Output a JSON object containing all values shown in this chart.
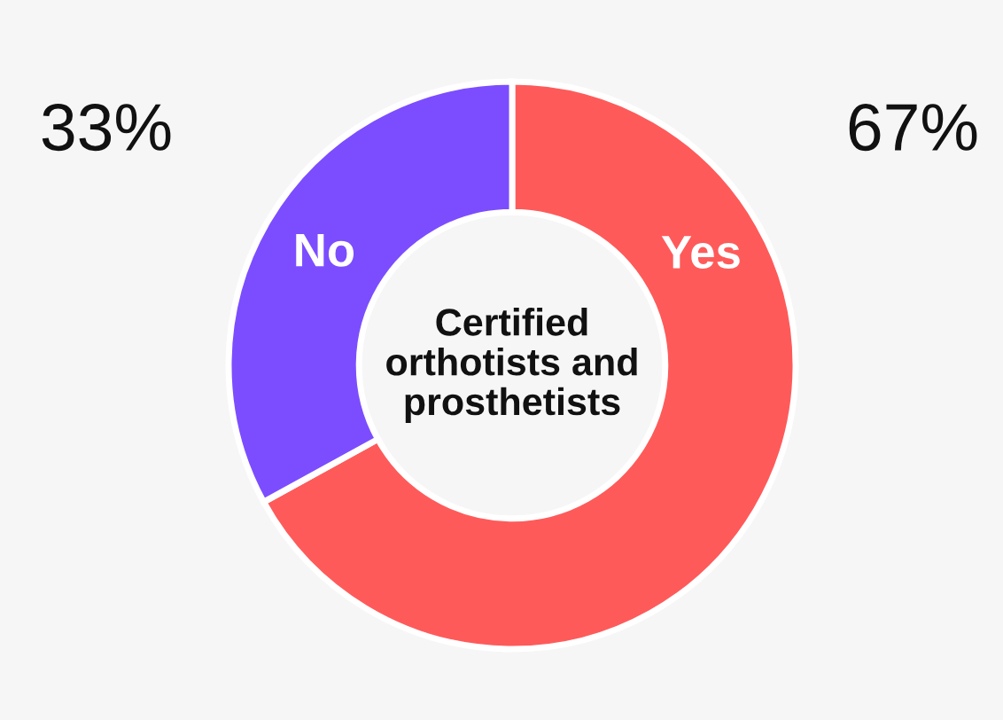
{
  "chart_data": {
    "type": "donut",
    "title": "Certified orthotists and prosthetists",
    "categories": [
      "Yes",
      "No"
    ],
    "values": [
      67,
      33
    ],
    "colors": [
      "#ff5a5a",
      "#7c4dff"
    ],
    "value_labels": [
      "67%",
      "33%"
    ]
  }
}
